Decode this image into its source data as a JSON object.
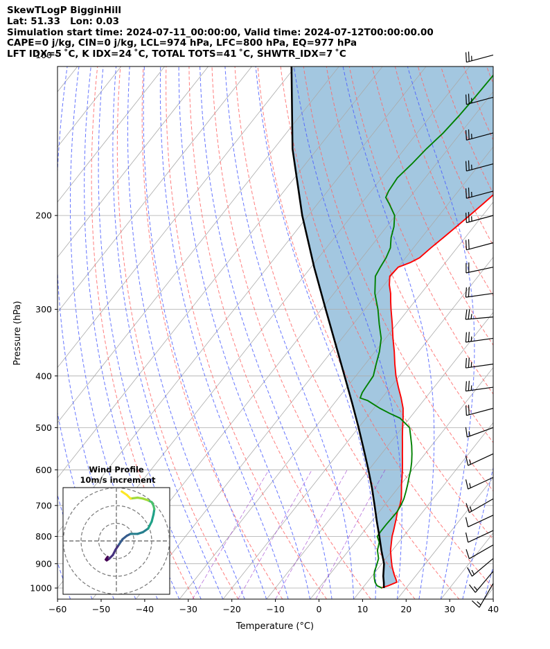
{
  "header": {
    "line1": "SkewTLogP BigginHill",
    "line2": "Lat: 51.33   Lon: 0.03",
    "line3": "Simulation start time: 2024-07-11_00:00:00, Valid time: 2024-07-12T00:00:00.00",
    "line4": "CAPE=0 j/kg, CIN=0 j/kg, LCL=974 hPa, LFC=800 hPa, EQ=977 hPa",
    "line5": "LFT IDX=5 ˚C, K IDX=24 ˚C, TOTAL TOTS=41 ˚C, SHWTR_IDX=7 ˚C"
  },
  "chart_data": {
    "type": "line",
    "diagram": "skew-T log-P",
    "xlabel": "Temperature ($^\\circ$C)",
    "ylabel": "Pressure (hPa)",
    "xlim": [
      -60,
      40
    ],
    "ylim": [
      1050,
      100
    ],
    "y_scale": "log",
    "x_ticks": [
      -60,
      -50,
      -40,
      -30,
      -20,
      -10,
      0,
      10,
      20,
      30,
      40
    ],
    "x_tick_labels": [
      "−60",
      "−50",
      "−40",
      "−30",
      "−20",
      "−10",
      "0",
      "10",
      "20",
      "30",
      "40"
    ],
    "y_ticks": [
      1000,
      900,
      800,
      700,
      600,
      500,
      400,
      300,
      200,
      100
    ],
    "grid": true,
    "series": [
      {
        "role": "temperature",
        "color": "#ff0000",
        "pressure": [
          1000,
          990,
          975,
          960,
          945,
          930,
          910,
          880,
          850,
          820,
          800,
          780,
          760,
          740,
          720,
          700,
          680,
          660,
          640,
          620,
          600,
          580,
          560,
          540,
          520,
          500,
          480,
          460,
          440,
          420,
          400,
          380,
          360,
          340,
          320,
          300,
          290,
          280,
          270,
          260,
          250,
          245,
          240,
          230,
          220,
          210,
          200,
          190,
          180,
          170,
          160,
          150,
          140,
          130,
          120,
          110,
          100
        ],
        "temperature": [
          14.2,
          15.5,
          16.8,
          15.9,
          14.9,
          14.0,
          12.8,
          11.2,
          9.6,
          8.3,
          7.4,
          6.7,
          5.9,
          5.1,
          4.2,
          3.6,
          2.7,
          1.5,
          0.2,
          -1.0,
          -2.3,
          -3.7,
          -5.2,
          -6.7,
          -8.3,
          -9.9,
          -11.5,
          -13.3,
          -15.6,
          -18.2,
          -20.8,
          -23.2,
          -25.6,
          -28.3,
          -31.0,
          -34.0,
          -35.5,
          -37.0,
          -38.8,
          -40.3,
          -40.0,
          -38.0,
          -36.8,
          -36.0,
          -35.0,
          -34.0,
          -33.0,
          -32.0,
          -31.0,
          -30.5,
          -30.2,
          -29.8,
          -29.6,
          -30.0,
          -30.8,
          -31.6,
          -32.5
        ]
      },
      {
        "role": "dewpoint",
        "color": "#008000",
        "pressure": [
          1000,
          990,
          975,
          960,
          945,
          930,
          910,
          880,
          850,
          820,
          800,
          780,
          760,
          740,
          720,
          700,
          680,
          660,
          640,
          620,
          600,
          580,
          560,
          540,
          520,
          500,
          480,
          470,
          460,
          445,
          440,
          430,
          420,
          400,
          380,
          360,
          340,
          320,
          300,
          280,
          260,
          250,
          240,
          230,
          220,
          210,
          200,
          190,
          185,
          180,
          170,
          160,
          150,
          140,
          130,
          120,
          110,
          100
        ],
        "temperature": [
          14.5,
          12.9,
          11.8,
          11.0,
          10.3,
          9.7,
          9.2,
          8.3,
          6.6,
          5.5,
          4.0,
          3.9,
          3.9,
          4.0,
          4.1,
          3.8,
          3.3,
          2.5,
          1.6,
          0.6,
          -0.4,
          -1.6,
          -3.0,
          -4.6,
          -6.4,
          -8.3,
          -12.2,
          -15.5,
          -18.6,
          -22.8,
          -25.0,
          -25.5,
          -25.7,
          -26.0,
          -27.5,
          -29.0,
          -31.0,
          -34.0,
          -37.0,
          -40.6,
          -43.6,
          -44.1,
          -44.5,
          -45.3,
          -47.0,
          -48.3,
          -50.2,
          -53.6,
          -55.5,
          -56.0,
          -56.4,
          -55.6,
          -55.0,
          -54.0,
          -53.5,
          -53.2,
          -53.0,
          -52.8
        ]
      },
      {
        "role": "parcel",
        "color": "#000000",
        "pressure": [
          1000,
          977,
          950,
          900,
          850,
          800,
          750,
          700,
          650,
          600,
          550,
          500,
          450,
          400,
          350,
          300,
          250,
          200,
          150,
          100
        ],
        "temperature": [
          14.9,
          13.9,
          12.6,
          10.5,
          7.5,
          4.5,
          1.2,
          -2.2,
          -5.9,
          -10.1,
          -14.8,
          -20.0,
          -25.9,
          -32.6,
          -40.2,
          -49.0,
          -59.3,
          -71.4,
          -85.7,
          -103.0
        ]
      }
    ],
    "shading": "CAPE/CIN area between parcel and temperature",
    "wind_barbs": {
      "pressure": [
        100,
        120,
        140,
        160,
        180,
        200,
        225,
        250,
        280,
        310,
        340,
        380,
        420,
        460,
        500,
        560,
        620,
        680,
        730,
        780,
        830,
        880,
        930,
        980
      ],
      "direction_deg": [
        255,
        255,
        255,
        255,
        255,
        255,
        255,
        258,
        262,
        265,
        262,
        262,
        262,
        255,
        250,
        245,
        245,
        240,
        245,
        245,
        240,
        230,
        220,
        210
      ],
      "speed_kt": [
        25,
        25,
        25,
        25,
        25,
        25,
        20,
        20,
        20,
        25,
        25,
        25,
        25,
        20,
        15,
        15,
        15,
        15,
        10,
        10,
        10,
        15,
        15,
        15
      ]
    },
    "hodograph": {
      "title_line1": "Wind Profile",
      "title_line2": "10m/s increment",
      "rings_ms": [
        10,
        20,
        30
      ],
      "u": [
        -5,
        -6,
        -5.5,
        -4,
        -2,
        -0.5,
        1.5,
        3.5,
        6,
        8,
        12,
        15,
        18,
        20,
        21,
        21.5,
        21,
        20,
        18,
        15,
        12,
        8,
        6,
        3
      ],
      "v": [
        -9,
        -10.5,
        -11,
        -10,
        -8,
        -5,
        -2,
        1,
        3,
        4,
        4,
        5,
        7,
        11,
        15,
        18,
        20,
        22,
        23,
        24,
        24.5,
        24,
        26,
        28
      ]
    }
  }
}
